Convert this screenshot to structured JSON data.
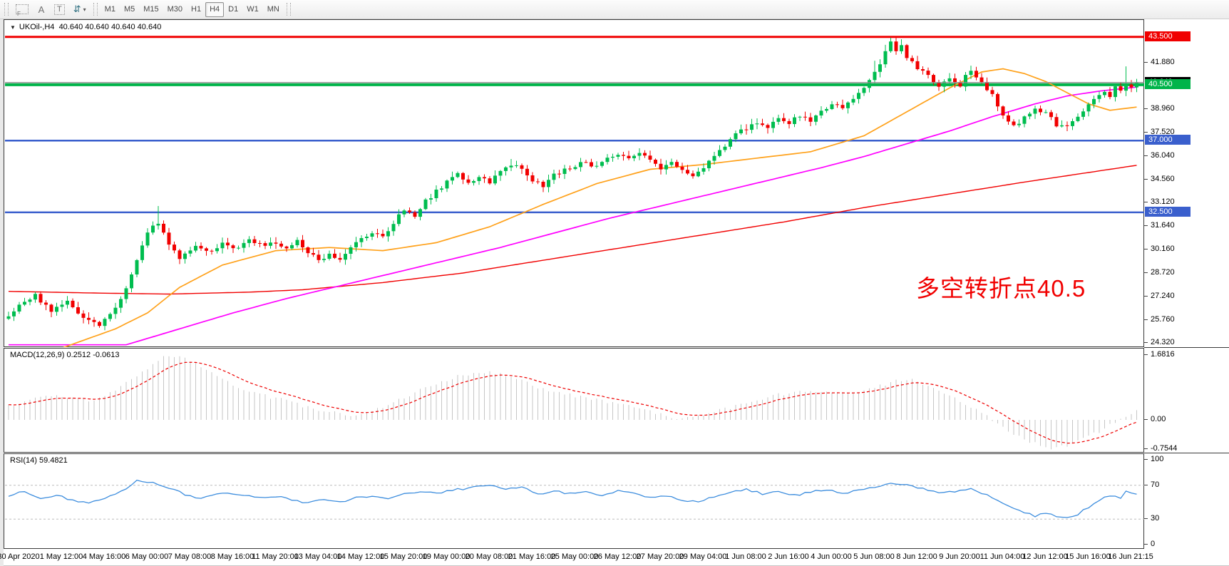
{
  "toolbar": {
    "tools": [
      {
        "name": "chart-grid-template",
        "glyph": "F"
      },
      {
        "name": "label-tool",
        "glyph": "A"
      },
      {
        "name": "text-tool",
        "glyph": "T"
      },
      {
        "name": "arrows-tool",
        "glyph": "⇵",
        "caret": "▾"
      }
    ],
    "timeframes": [
      "M1",
      "M5",
      "M15",
      "M30",
      "H1",
      "H4",
      "D1",
      "W1",
      "MN"
    ],
    "active_timeframe": "H4"
  },
  "chart": {
    "title_symbol": "UKOil-,H4",
    "title_quote": "40.640 40.640 40.640 40.640",
    "dropdown_triangle": "▼"
  },
  "annotation": {
    "text": "多空转折点40.5",
    "color": "#f10000"
  },
  "indicators": {
    "macd": {
      "name": "MACD(12,26,9)",
      "value": "0.2512",
      "signal_value": "-0.0613"
    },
    "rsi": {
      "name": "RSI(14)",
      "value": "59.4821"
    }
  },
  "chart_data": {
    "type": "candlestick+indicators",
    "symbol": "UKOil-",
    "timeframe": "H4",
    "quote": "40.640 40.640 40.640 40.640",
    "bars": 212,
    "current_price": 40.64,
    "colors": {
      "up": "#00bd4f",
      "down": "#f10000",
      "ma_fast": "#ffa11a",
      "ma_mid": "#ff00ff",
      "ma_slow": "#f10000",
      "macd_hist": "#c6c6c6",
      "macd_signal": "#ee0000",
      "rsi_line": "#3e8ede",
      "rsi_level": "#bdbdbd",
      "current_line": "#8c8c8c",
      "badge_current": "#000000"
    },
    "price_axis_ticks": [
      "41.880",
      "38.960",
      "37.520",
      "36.040",
      "34.560",
      "33.120",
      "31.640",
      "30.160",
      "28.720",
      "27.240",
      "25.760",
      "24.320"
    ],
    "ylim_main": [
      24.05,
      44.52
    ],
    "hlines": [
      {
        "price": 43.5,
        "label": "43.500",
        "color": "#f00000",
        "width": 3
      },
      {
        "price": 40.5,
        "label": "40.500",
        "color": "#00b44a",
        "width": 4
      },
      {
        "price": 37.0,
        "label": "37.000",
        "color": "#3a5fcd",
        "width": 2.5
      },
      {
        "price": 32.5,
        "label": "32.500",
        "color": "#3a5fcd",
        "width": 2.5
      }
    ],
    "current_badge_label": "40.640",
    "close_keypoints": [
      [
        0,
        26.0
      ],
      [
        3,
        26.9
      ],
      [
        5,
        27.3
      ],
      [
        8,
        26.3
      ],
      [
        11,
        26.9
      ],
      [
        14,
        25.9
      ],
      [
        17,
        25.4
      ],
      [
        20,
        26.4
      ],
      [
        23,
        28.6
      ],
      [
        26,
        31.3
      ],
      [
        28,
        31.9
      ],
      [
        30,
        30.6
      ],
      [
        32,
        29.6
      ],
      [
        35,
        30.5
      ],
      [
        38,
        30.0
      ],
      [
        40,
        30.6
      ],
      [
        42,
        30.2
      ],
      [
        45,
        30.7
      ],
      [
        48,
        30.4
      ],
      [
        50,
        30.6
      ],
      [
        52,
        30.2
      ],
      [
        54,
        30.7
      ],
      [
        56,
        30.0
      ],
      [
        58,
        29.5
      ],
      [
        60,
        29.9
      ],
      [
        62,
        29.5
      ],
      [
        64,
        30.3
      ],
      [
        66,
        30.8
      ],
      [
        68,
        31.3
      ],
      [
        70,
        31.0
      ],
      [
        72,
        31.9
      ],
      [
        74,
        32.6
      ],
      [
        76,
        32.3
      ],
      [
        78,
        33.2
      ],
      [
        80,
        33.8
      ],
      [
        82,
        34.4
      ],
      [
        84,
        34.9
      ],
      [
        86,
        34.3
      ],
      [
        88,
        34.8
      ],
      [
        90,
        34.4
      ],
      [
        92,
        35.0
      ],
      [
        94,
        35.5
      ],
      [
        96,
        35.2
      ],
      [
        98,
        34.5
      ],
      [
        100,
        34.1
      ],
      [
        102,
        34.8
      ],
      [
        104,
        35.2
      ],
      [
        106,
        35.4
      ],
      [
        108,
        35.7
      ],
      [
        110,
        35.3
      ],
      [
        112,
        35.9
      ],
      [
        114,
        36.1
      ],
      [
        116,
        35.8
      ],
      [
        118,
        36.2
      ],
      [
        120,
        35.7
      ],
      [
        122,
        35.3
      ],
      [
        124,
        35.6
      ],
      [
        126,
        35.1
      ],
      [
        128,
        34.8
      ],
      [
        130,
        35.3
      ],
      [
        132,
        36.1
      ],
      [
        134,
        36.7
      ],
      [
        136,
        37.4
      ],
      [
        138,
        37.8
      ],
      [
        140,
        38.2
      ],
      [
        142,
        37.9
      ],
      [
        144,
        38.4
      ],
      [
        146,
        38.1
      ],
      [
        148,
        38.6
      ],
      [
        150,
        38.3
      ],
      [
        152,
        38.9
      ],
      [
        154,
        39.3
      ],
      [
        156,
        39.0
      ],
      [
        158,
        39.6
      ],
      [
        160,
        40.3
      ],
      [
        162,
        41.2
      ],
      [
        164,
        42.5
      ],
      [
        165,
        43.1
      ],
      [
        166,
        42.6
      ],
      [
        167,
        42.9
      ],
      [
        168,
        42.2
      ],
      [
        170,
        41.6
      ],
      [
        172,
        41.0
      ],
      [
        174,
        40.5
      ],
      [
        176,
        40.8
      ],
      [
        178,
        40.4
      ],
      [
        179,
        41.1
      ],
      [
        180,
        41.3
      ],
      [
        182,
        40.6
      ],
      [
        184,
        39.8
      ],
      [
        186,
        38.6
      ],
      [
        188,
        37.9
      ],
      [
        190,
        38.4
      ],
      [
        192,
        39.1
      ],
      [
        194,
        38.7
      ],
      [
        196,
        38.0
      ],
      [
        198,
        37.8
      ],
      [
        200,
        38.5
      ],
      [
        202,
        39.2
      ],
      [
        204,
        39.8
      ],
      [
        205,
        40.1
      ],
      [
        206,
        39.8
      ],
      [
        207,
        40.4
      ],
      [
        208,
        40.2
      ],
      [
        209,
        40.5
      ],
      [
        210,
        40.3
      ],
      [
        211,
        40.64
      ]
    ],
    "spike_highs": [
      [
        164,
        43.0
      ],
      [
        165,
        43.45
      ],
      [
        166,
        43.3
      ],
      [
        167,
        43.35
      ],
      [
        162,
        42.0
      ],
      [
        209,
        41.65
      ],
      [
        28,
        32.9
      ],
      [
        94,
        35.85
      ]
    ],
    "ma_fast_keypoints": [
      [
        0,
        23.0
      ],
      [
        10,
        24.0
      ],
      [
        20,
        25.2
      ],
      [
        26,
        26.2
      ],
      [
        32,
        27.8
      ],
      [
        40,
        29.2
      ],
      [
        50,
        30.1
      ],
      [
        60,
        30.3
      ],
      [
        70,
        30.1
      ],
      [
        80,
        30.6
      ],
      [
        90,
        31.6
      ],
      [
        100,
        33.0
      ],
      [
        110,
        34.3
      ],
      [
        120,
        35.2
      ],
      [
        130,
        35.5
      ],
      [
        140,
        35.9
      ],
      [
        150,
        36.3
      ],
      [
        160,
        37.3
      ],
      [
        168,
        38.8
      ],
      [
        176,
        40.3
      ],
      [
        182,
        41.3
      ],
      [
        186,
        41.5
      ],
      [
        190,
        41.2
      ],
      [
        194,
        40.7
      ],
      [
        198,
        40.0
      ],
      [
        202,
        39.3
      ],
      [
        206,
        38.9
      ],
      [
        211,
        39.1
      ]
    ],
    "ma_mid_keypoints": [
      [
        22,
        24.2
      ],
      [
        32,
        25.2
      ],
      [
        42,
        26.2
      ],
      [
        52,
        27.1
      ],
      [
        62,
        27.9
      ],
      [
        72,
        28.7
      ],
      [
        82,
        29.5
      ],
      [
        92,
        30.3
      ],
      [
        102,
        31.2
      ],
      [
        112,
        32.1
      ],
      [
        122,
        32.9
      ],
      [
        132,
        33.7
      ],
      [
        142,
        34.5
      ],
      [
        152,
        35.3
      ],
      [
        160,
        36.0
      ],
      [
        168,
        36.8
      ],
      [
        176,
        37.6
      ],
      [
        184,
        38.5
      ],
      [
        192,
        39.3
      ],
      [
        198,
        39.8
      ],
      [
        204,
        40.1
      ],
      [
        211,
        40.35
      ]
    ],
    "ma_slow_keypoints": [
      [
        0,
        27.55
      ],
      [
        15,
        27.45
      ],
      [
        30,
        27.38
      ],
      [
        45,
        27.5
      ],
      [
        55,
        27.65
      ],
      [
        70,
        28.1
      ],
      [
        85,
        28.7
      ],
      [
        100,
        29.5
      ],
      [
        115,
        30.3
      ],
      [
        130,
        31.1
      ],
      [
        145,
        31.9
      ],
      [
        160,
        32.8
      ],
      [
        175,
        33.6
      ],
      [
        190,
        34.4
      ],
      [
        200,
        34.9
      ],
      [
        211,
        35.45
      ]
    ],
    "macd": {
      "axis_labels": [
        "1.6816",
        "0.00",
        "-0.7544"
      ],
      "value": 0.2512,
      "signal": -0.0613,
      "keypoints": [
        [
          0,
          0.35
        ],
        [
          4,
          0.5
        ],
        [
          8,
          0.65
        ],
        [
          12,
          0.55
        ],
        [
          16,
          0.5
        ],
        [
          20,
          0.75
        ],
        [
          24,
          1.15
        ],
        [
          28,
          1.55
        ],
        [
          30,
          1.68
        ],
        [
          33,
          1.6
        ],
        [
          36,
          1.35
        ],
        [
          40,
          1.05
        ],
        [
          44,
          0.8
        ],
        [
          48,
          0.62
        ],
        [
          52,
          0.5
        ],
        [
          56,
          0.32
        ],
        [
          60,
          0.2
        ],
        [
          64,
          0.12
        ],
        [
          68,
          0.22
        ],
        [
          72,
          0.45
        ],
        [
          76,
          0.7
        ],
        [
          80,
          0.95
        ],
        [
          84,
          1.12
        ],
        [
          88,
          1.22
        ],
        [
          90,
          1.25
        ],
        [
          94,
          1.1
        ],
        [
          98,
          0.9
        ],
        [
          102,
          0.72
        ],
        [
          106,
          0.62
        ],
        [
          110,
          0.52
        ],
        [
          114,
          0.42
        ],
        [
          118,
          0.3
        ],
        [
          122,
          0.14
        ],
        [
          126,
          0.02
        ],
        [
          130,
          0.1
        ],
        [
          134,
          0.28
        ],
        [
          138,
          0.45
        ],
        [
          142,
          0.6
        ],
        [
          146,
          0.7
        ],
        [
          150,
          0.75
        ],
        [
          154,
          0.68
        ],
        [
          158,
          0.72
        ],
        [
          162,
          0.85
        ],
        [
          166,
          1.0
        ],
        [
          169,
          1.02
        ],
        [
          172,
          0.85
        ],
        [
          176,
          0.6
        ],
        [
          180,
          0.35
        ],
        [
          184,
          0.0
        ],
        [
          188,
          -0.35
        ],
        [
          192,
          -0.62
        ],
        [
          195,
          -0.75
        ],
        [
          198,
          -0.68
        ],
        [
          201,
          -0.5
        ],
        [
          204,
          -0.3
        ],
        [
          207,
          -0.05
        ],
        [
          211,
          0.2512
        ]
      ]
    },
    "rsi": {
      "axis_labels": [
        "100",
        "70",
        "30",
        "0"
      ],
      "value": 59.4821,
      "overbought": 70,
      "oversold": 30,
      "keypoints": [
        [
          0,
          58
        ],
        [
          3,
          63
        ],
        [
          6,
          55
        ],
        [
          9,
          58
        ],
        [
          12,
          52
        ],
        [
          15,
          49
        ],
        [
          18,
          55
        ],
        [
          22,
          66
        ],
        [
          24,
          76
        ],
        [
          27,
          73
        ],
        [
          32,
          62
        ],
        [
          35,
          54
        ],
        [
          38,
          58
        ],
        [
          41,
          61
        ],
        [
          44,
          58
        ],
        [
          47,
          55
        ],
        [
          50,
          57
        ],
        [
          53,
          53
        ],
        [
          56,
          49
        ],
        [
          59,
          53
        ],
        [
          62,
          50
        ],
        [
          65,
          55
        ],
        [
          68,
          58
        ],
        [
          71,
          54
        ],
        [
          74,
          60
        ],
        [
          77,
          63
        ],
        [
          80,
          60
        ],
        [
          84,
          65
        ],
        [
          88,
          68
        ],
        [
          90,
          71
        ],
        [
          93,
          65
        ],
        [
          96,
          68
        ],
        [
          99,
          60
        ],
        [
          102,
          63
        ],
        [
          105,
          60
        ],
        [
          108,
          62
        ],
        [
          111,
          58
        ],
        [
          114,
          63
        ],
        [
          117,
          60
        ],
        [
          120,
          55
        ],
        [
          123,
          58
        ],
        [
          126,
          52
        ],
        [
          129,
          50
        ],
        [
          132,
          57
        ],
        [
          135,
          62
        ],
        [
          138,
          65
        ],
        [
          141,
          60
        ],
        [
          144,
          63
        ],
        [
          147,
          58
        ],
        [
          150,
          62
        ],
        [
          153,
          65
        ],
        [
          156,
          60
        ],
        [
          159,
          64
        ],
        [
          162,
          68
        ],
        [
          165,
          72
        ],
        [
          168,
          70
        ],
        [
          171,
          66
        ],
        [
          174,
          60
        ],
        [
          177,
          63
        ],
        [
          180,
          65
        ],
        [
          183,
          58
        ],
        [
          186,
          48
        ],
        [
          189,
          40
        ],
        [
          192,
          34
        ],
        [
          194,
          38
        ],
        [
          196,
          33
        ],
        [
          198,
          31
        ],
        [
          200,
          36
        ],
        [
          202,
          44
        ],
        [
          204,
          52
        ],
        [
          206,
          58
        ],
        [
          208,
          55
        ],
        [
          209,
          62
        ],
        [
          210,
          60
        ],
        [
          211,
          59.48
        ]
      ]
    },
    "time_labels": [
      "30 Apr 2020",
      "1 May 12:00",
      "4 May 16:00",
      "6 May 00:00",
      "7 May 08:00",
      "8 May 16:00",
      "11 May 20:00",
      "13 May 04:00",
      "14 May 12:00",
      "15 May 20:00",
      "19 May 00:00",
      "20 May 08:00",
      "21 May 16:00",
      "25 May 00:00",
      "26 May 12:00",
      "27 May 20:00",
      "29 May 04:00",
      "1 Jun 08:00",
      "2 Jun 16:00",
      "4 Jun 00:00",
      "5 Jun 08:00",
      "8 Jun 12:00",
      "9 Jun 20:00",
      "11 Jun 04:00",
      "12 Jun 12:00",
      "15 Jun 16:00",
      "16 Jun 21:15"
    ]
  }
}
